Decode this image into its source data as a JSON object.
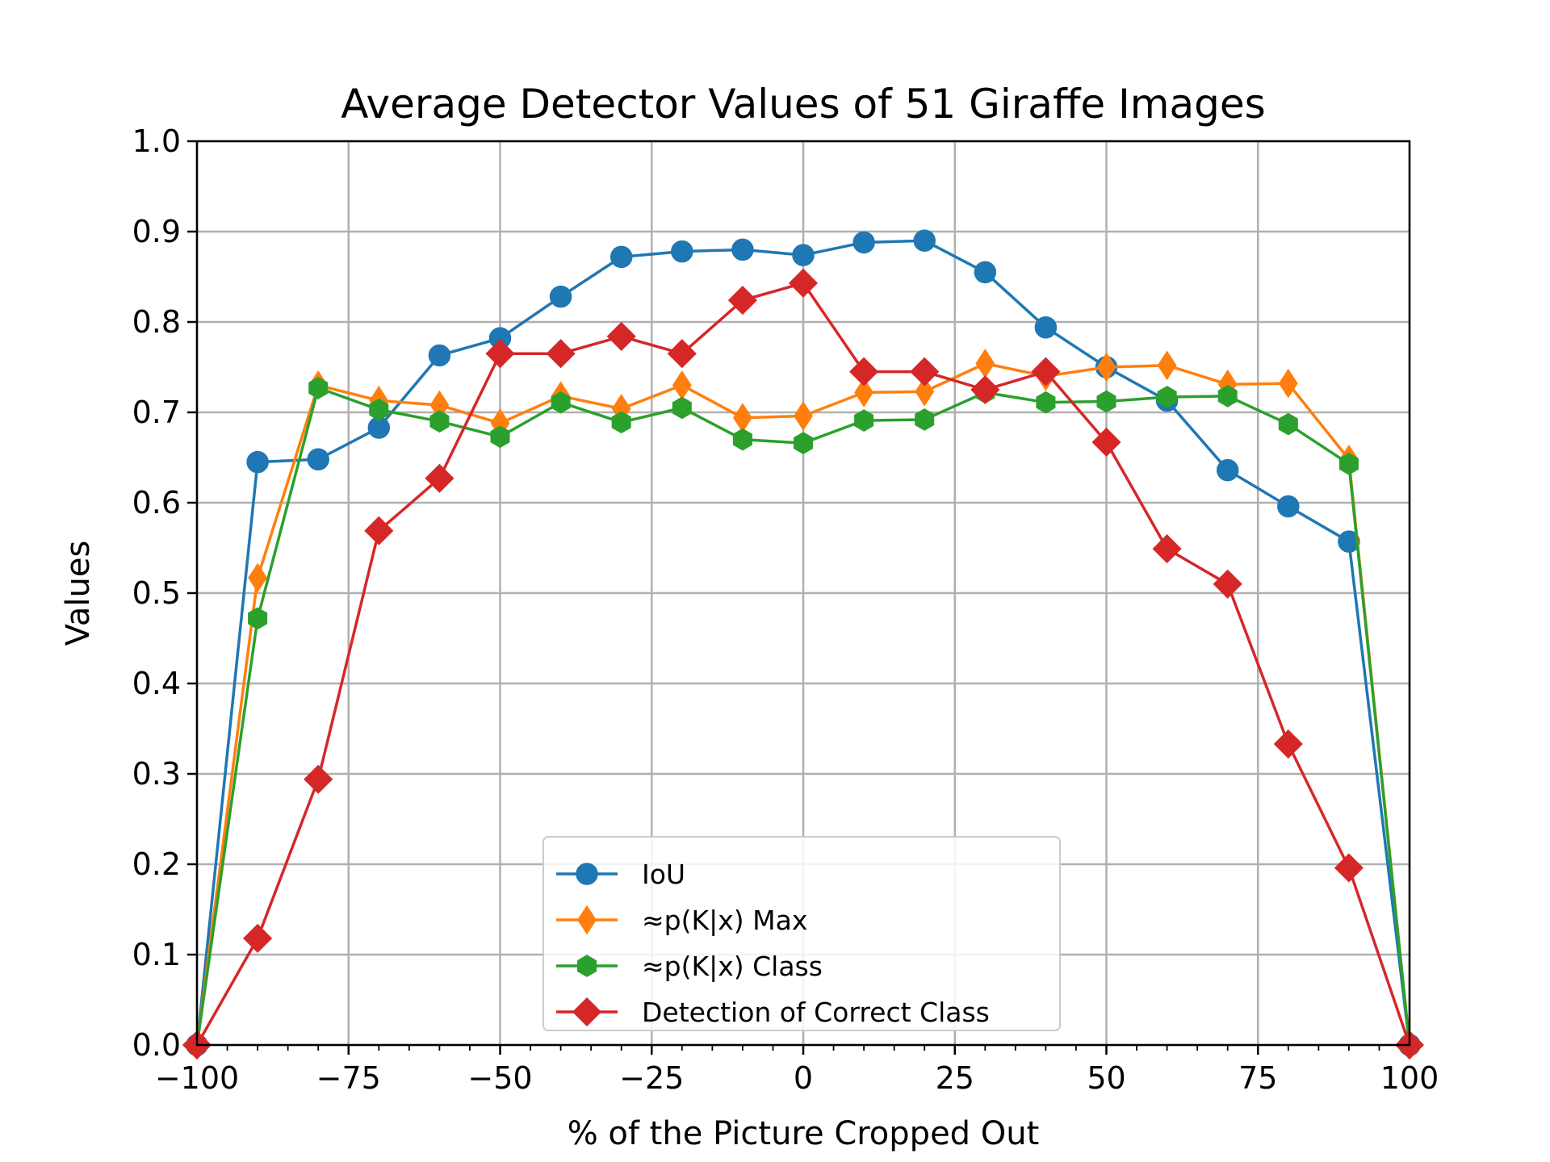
{
  "chart_data": {
    "type": "line",
    "title": "Average Detector Values of 51 Giraffe Images",
    "xlabel": "% of the Picture Cropped Out",
    "ylabel": "Values",
    "xlim": [
      -100,
      100
    ],
    "ylim": [
      0.0,
      1.0
    ],
    "xticks": [
      -100,
      -75,
      -50,
      -25,
      0,
      25,
      50,
      75,
      100
    ],
    "xtick_labels": [
      "−100",
      "−75",
      "−50",
      "−25",
      "0",
      "25",
      "50",
      "75",
      "100"
    ],
    "yticks": [
      0.0,
      0.1,
      0.2,
      0.3,
      0.4,
      0.5,
      0.6,
      0.7,
      0.8,
      0.9,
      1.0
    ],
    "ytick_labels": [
      "0.0",
      "0.1",
      "0.2",
      "0.3",
      "0.4",
      "0.5",
      "0.6",
      "0.7",
      "0.8",
      "0.9",
      "1.0"
    ],
    "grid": true,
    "legend_position": "lower-center",
    "x": [
      -100,
      -90,
      -80,
      -70,
      -60,
      -50,
      -40,
      -30,
      -20,
      -10,
      0,
      10,
      20,
      30,
      40,
      50,
      60,
      70,
      80,
      90,
      100
    ],
    "series": [
      {
        "name": "IoU",
        "color": "#1f77b4",
        "marker": "circle",
        "values": [
          0.0,
          0.645,
          0.648,
          0.683,
          0.763,
          0.782,
          0.828,
          0.872,
          0.878,
          0.88,
          0.874,
          0.888,
          0.89,
          0.855,
          0.794,
          0.75,
          0.713,
          0.636,
          0.596,
          0.557,
          0.0
        ]
      },
      {
        "name": "≈p(K|x) Max",
        "color": "#ff7f0e",
        "marker": "thin-diamond",
        "values": [
          0.0,
          0.517,
          0.73,
          0.713,
          0.708,
          0.688,
          0.718,
          0.704,
          0.73,
          0.694,
          0.696,
          0.722,
          0.723,
          0.754,
          0.74,
          0.75,
          0.752,
          0.731,
          0.732,
          0.648,
          0.0
        ]
      },
      {
        "name": "≈p(K|x) Class",
        "color": "#2ca02c",
        "marker": "hexagon",
        "values": [
          0.0,
          0.472,
          0.727,
          0.703,
          0.69,
          0.673,
          0.711,
          0.689,
          0.705,
          0.67,
          0.666,
          0.691,
          0.692,
          0.722,
          0.711,
          0.712,
          0.717,
          0.718,
          0.687,
          0.643,
          0.0
        ]
      },
      {
        "name": "Detection of Correct Class",
        "color": "#d62728",
        "marker": "diamond",
        "values": [
          0.0,
          0.118,
          0.294,
          0.569,
          0.627,
          0.765,
          0.765,
          0.784,
          0.765,
          0.824,
          0.843,
          0.745,
          0.745,
          0.725,
          0.745,
          0.667,
          0.549,
          0.51,
          0.333,
          0.196,
          0.0
        ]
      }
    ]
  }
}
